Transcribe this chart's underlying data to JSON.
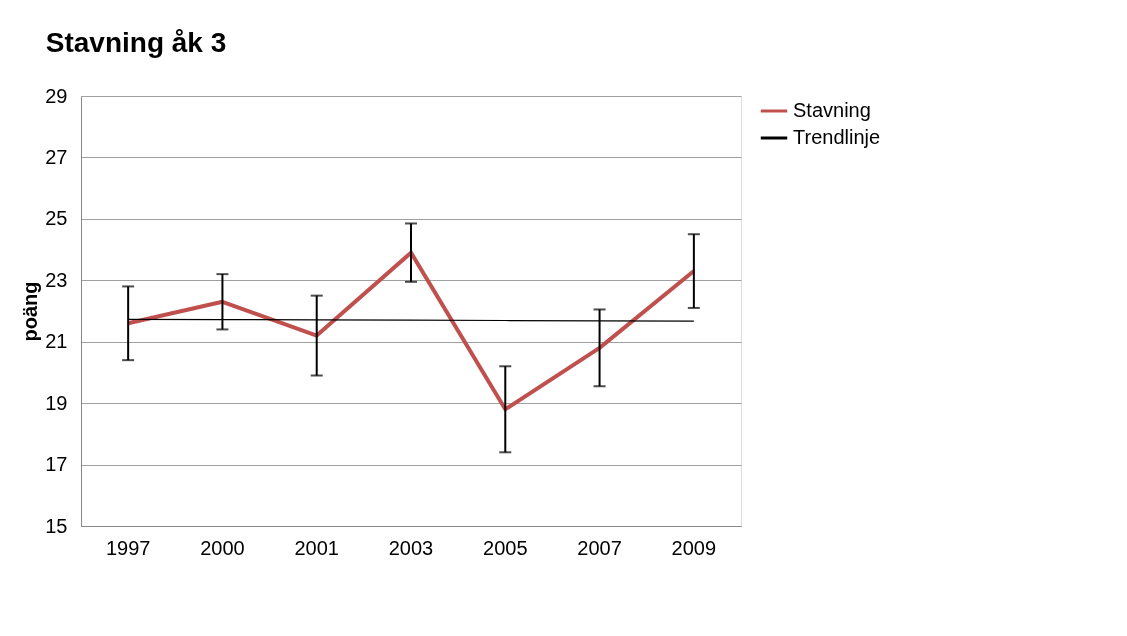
{
  "chart_data": {
    "type": "line",
    "title": "Stavning åk 3",
    "ylabel": "poäng",
    "categories": [
      "1997",
      "2000",
      "2001",
      "2003",
      "2005",
      "2007",
      "2009"
    ],
    "series": [
      {
        "name": "Stavning",
        "color": "#c0504d",
        "values": [
          21.6,
          22.3,
          21.2,
          23.9,
          18.8,
          20.8,
          23.3
        ],
        "errors": [
          1.2,
          0.9,
          1.3,
          0.95,
          1.4,
          1.25,
          1.2
        ]
      },
      {
        "name": "Trendlinje",
        "color": "#000000",
        "values": [
          21.73,
          21.72,
          21.71,
          21.7,
          21.69,
          21.68,
          21.67
        ]
      }
    ],
    "ylim": [
      15,
      29
    ],
    "yticks": [
      15,
      17,
      19,
      21,
      23,
      25,
      27,
      29
    ],
    "grid": "y",
    "legend": "right"
  }
}
